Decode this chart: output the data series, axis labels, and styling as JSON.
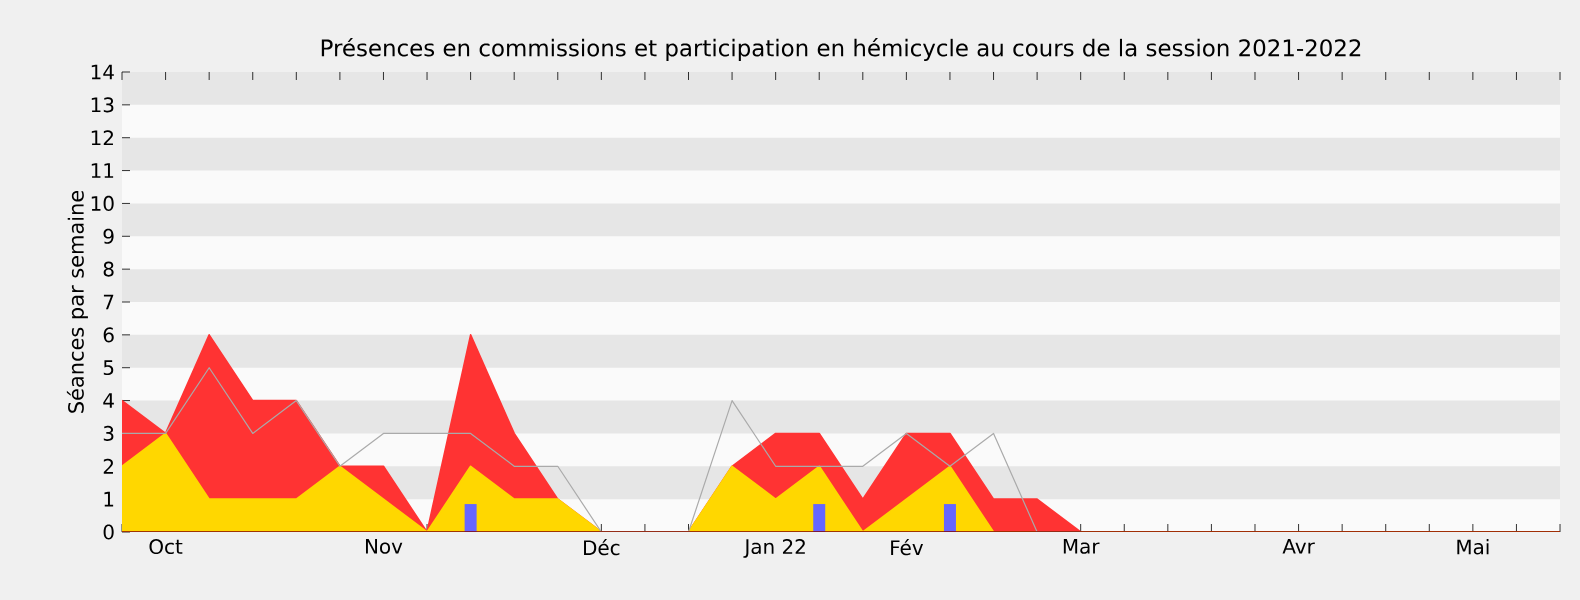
{
  "chart_data": {
    "type": "area",
    "title": "Présences en commissions et participation en hémicycle au cours de la session 2021-2022",
    "ylabel": "Séances par semaine",
    "categories": [
      null,
      "Oct",
      null,
      null,
      null,
      null,
      "Nov",
      null,
      null,
      null,
      null,
      "Déc",
      null,
      null,
      null,
      "Jan 22",
      null,
      null,
      "Fév",
      null,
      null,
      null,
      "Mar",
      null,
      null,
      null,
      null,
      "Avr",
      null,
      null,
      null,
      "Mai",
      null,
      null
    ],
    "ylim": [
      0,
      14
    ],
    "yticks": [
      0,
      1,
      2,
      3,
      4,
      5,
      6,
      7,
      8,
      9,
      10,
      11,
      12,
      13,
      14
    ],
    "series": [
      {
        "color": "#ff3333",
        "values": [
          4,
          3,
          6,
          4,
          4,
          2,
          2,
          0,
          6,
          3,
          1,
          0,
          0,
          0,
          2,
          3,
          3,
          1,
          3,
          3,
          1,
          1,
          0,
          0,
          0,
          0,
          0,
          0,
          0,
          0,
          0,
          0,
          0,
          0
        ]
      },
      {
        "color": "#ffd700",
        "values": [
          2,
          3,
          1,
          1,
          1,
          2,
          1,
          0,
          2,
          1,
          1,
          0,
          0,
          0,
          2,
          1,
          2,
          0,
          1,
          2,
          0,
          0,
          0,
          0,
          0,
          0,
          0,
          0,
          0,
          0,
          0,
          0,
          0,
          0
        ]
      },
      {
        "type": "line",
        "color": "#aaaaaa",
        "values": [
          3,
          3,
          5,
          3,
          4,
          2,
          3,
          3,
          3,
          2,
          2,
          0,
          0,
          0,
          4,
          2,
          2,
          2,
          3,
          2,
          3,
          0,
          0,
          null,
          null,
          null,
          null,
          null,
          null,
          null,
          null,
          null,
          null,
          null
        ]
      },
      {
        "type": "bar",
        "color": "#6666ff",
        "values": [
          null,
          null,
          null,
          null,
          null,
          null,
          null,
          null,
          0.85,
          null,
          null,
          null,
          null,
          null,
          null,
          null,
          0.85,
          null,
          null,
          0.85,
          null,
          null,
          null,
          null,
          null,
          null,
          null,
          null,
          null,
          null,
          null,
          null,
          null,
          null
        ]
      }
    ]
  }
}
